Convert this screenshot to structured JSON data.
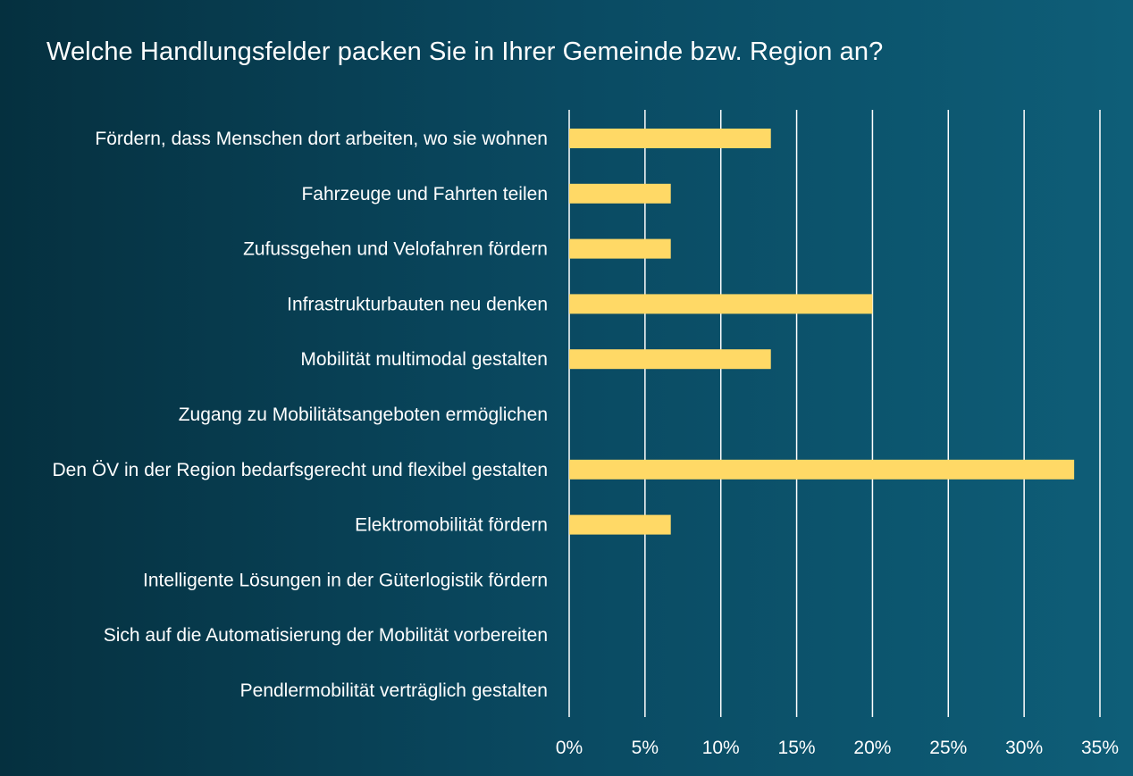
{
  "chart_data": {
    "type": "bar",
    "orientation": "horizontal",
    "title": "Welche Handlungsfelder packen Sie in Ihrer Gemeinde bzw. Region an?",
    "categories": [
      "Fördern, dass Menschen dort arbeiten, wo sie wohnen",
      "Fahrzeuge und Fahrten teilen",
      "Zufussgehen und Velofahren fördern",
      "Infrastrukturbauten neu denken",
      "Mobilität multimodal gestalten",
      "Zugang zu Mobilitätsangeboten ermöglichen",
      "Den ÖV in der Region bedarfsgerecht und flexibel gestalten",
      "Elektromobilität fördern",
      "Intelligente Lösungen in der Güterlogistik fördern",
      "Sich auf die Automatisierung der Mobilität vorbereiten",
      "Pendlermobilität verträglich gestalten"
    ],
    "values": [
      13.3,
      6.7,
      6.7,
      20.0,
      13.3,
      0,
      33.3,
      6.7,
      0,
      0,
      0
    ],
    "xlim": [
      0,
      35
    ],
    "xticks": [
      0,
      5,
      10,
      15,
      20,
      25,
      30,
      35
    ],
    "xtick_labels": [
      "0%",
      "5%",
      "10%",
      "15%",
      "20%",
      "25%",
      "30%",
      "35%"
    ],
    "xlabel": "",
    "ylabel": "",
    "grid": "vertical",
    "legend": "none",
    "colors": {
      "bar": "#ffd966",
      "gridline": "#ffffff",
      "text": "#ffffff",
      "background_start": "#05303f",
      "background_end": "#0e5e78"
    }
  }
}
